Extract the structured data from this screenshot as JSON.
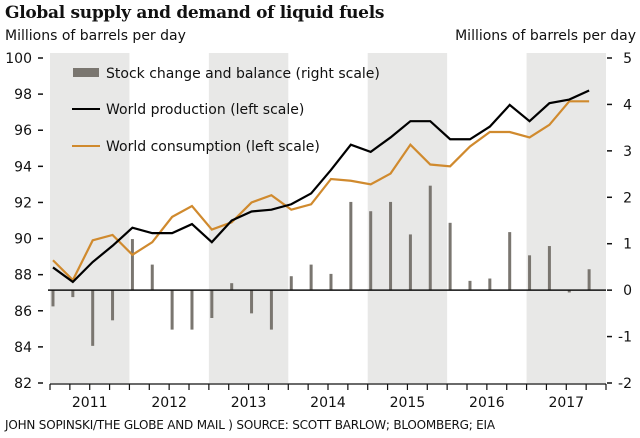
{
  "chart_data": {
    "type": "line",
    "title": "Global supply and demand of liquid fuels",
    "ylabel_left": "Millions of barrels per day",
    "ylabel_right": "Millions of barrels per day",
    "xlabel": "",
    "left_axis": {
      "ylim": [
        82,
        100
      ],
      "ticks": [
        100,
        98,
        96,
        94,
        92,
        90,
        88,
        86,
        84,
        82
      ]
    },
    "right_axis": {
      "ylim": [
        -2,
        5
      ],
      "ticks": [
        5,
        4,
        3,
        2,
        1,
        0,
        -1,
        -2
      ]
    },
    "x_labels": [
      "2011",
      "2012",
      "2013",
      "2014",
      "2015",
      "2016",
      "2017"
    ],
    "shaded_years": [
      "2011",
      "2013",
      "2015",
      "2017"
    ],
    "quarters_per_year": 4,
    "grid": false,
    "legend_position": "top-left",
    "series": [
      {
        "name": "Stock change and balance (right scale)",
        "kind": "bar",
        "axis": "right",
        "color": "#7a7670",
        "values": [
          -0.35,
          -0.15,
          -1.2,
          -0.65,
          1.1,
          0.55,
          -0.85,
          -0.85,
          -0.6,
          0.15,
          -0.5,
          -0.85,
          0.3,
          0.55,
          0.35,
          1.9,
          1.7,
          1.9,
          1.2,
          2.25,
          1.45,
          0.2,
          0.25,
          1.25,
          0.75,
          0.95,
          -0.05,
          0.45
        ]
      },
      {
        "name": "World production (left scale)",
        "kind": "line",
        "axis": "left",
        "color": "#000000",
        "values": [
          88.4,
          87.6,
          88.7,
          89.6,
          90.6,
          90.3,
          90.3,
          90.8,
          89.8,
          91.0,
          91.5,
          91.6,
          91.9,
          92.5,
          93.8,
          95.2,
          94.8,
          95.6,
          96.5,
          96.5,
          95.5,
          95.5,
          96.2,
          97.4,
          96.5,
          97.5,
          97.7,
          98.2
        ]
      },
      {
        "name": "World consumption (left scale)",
        "kind": "line",
        "axis": "left",
        "color": "#d08a2e",
        "values": [
          88.8,
          87.7,
          89.9,
          90.2,
          89.1,
          89.8,
          91.2,
          91.8,
          90.5,
          90.9,
          92.0,
          92.4,
          91.6,
          91.9,
          93.3,
          93.2,
          93.0,
          93.6,
          95.2,
          94.1,
          94.0,
          95.1,
          95.9,
          95.9,
          95.6,
          96.3,
          97.6,
          97.6
        ]
      }
    ]
  },
  "header": {
    "title": "Global supply and demand of liquid fuels",
    "unit_left": "Millions of barrels per day",
    "unit_right": "Millions of barrels per day"
  },
  "footer": {
    "source": "JOHN SOPINSKI/THE GLOBE AND MAIL ) SOURCE: SCOTT BARLOW; BLOOMBERG; EIA"
  },
  "legend": {
    "items": [
      {
        "label": "Stock change and balance (right scale)",
        "type": "bar",
        "color": "#7a7670"
      },
      {
        "label": "World production (left scale)",
        "type": "line",
        "color": "#000000"
      },
      {
        "label": "World consumption (left scale)",
        "type": "line",
        "color": "#d08a2e"
      }
    ]
  },
  "colors": {
    "shade": "#e8e8e7",
    "axis": "#111111"
  }
}
